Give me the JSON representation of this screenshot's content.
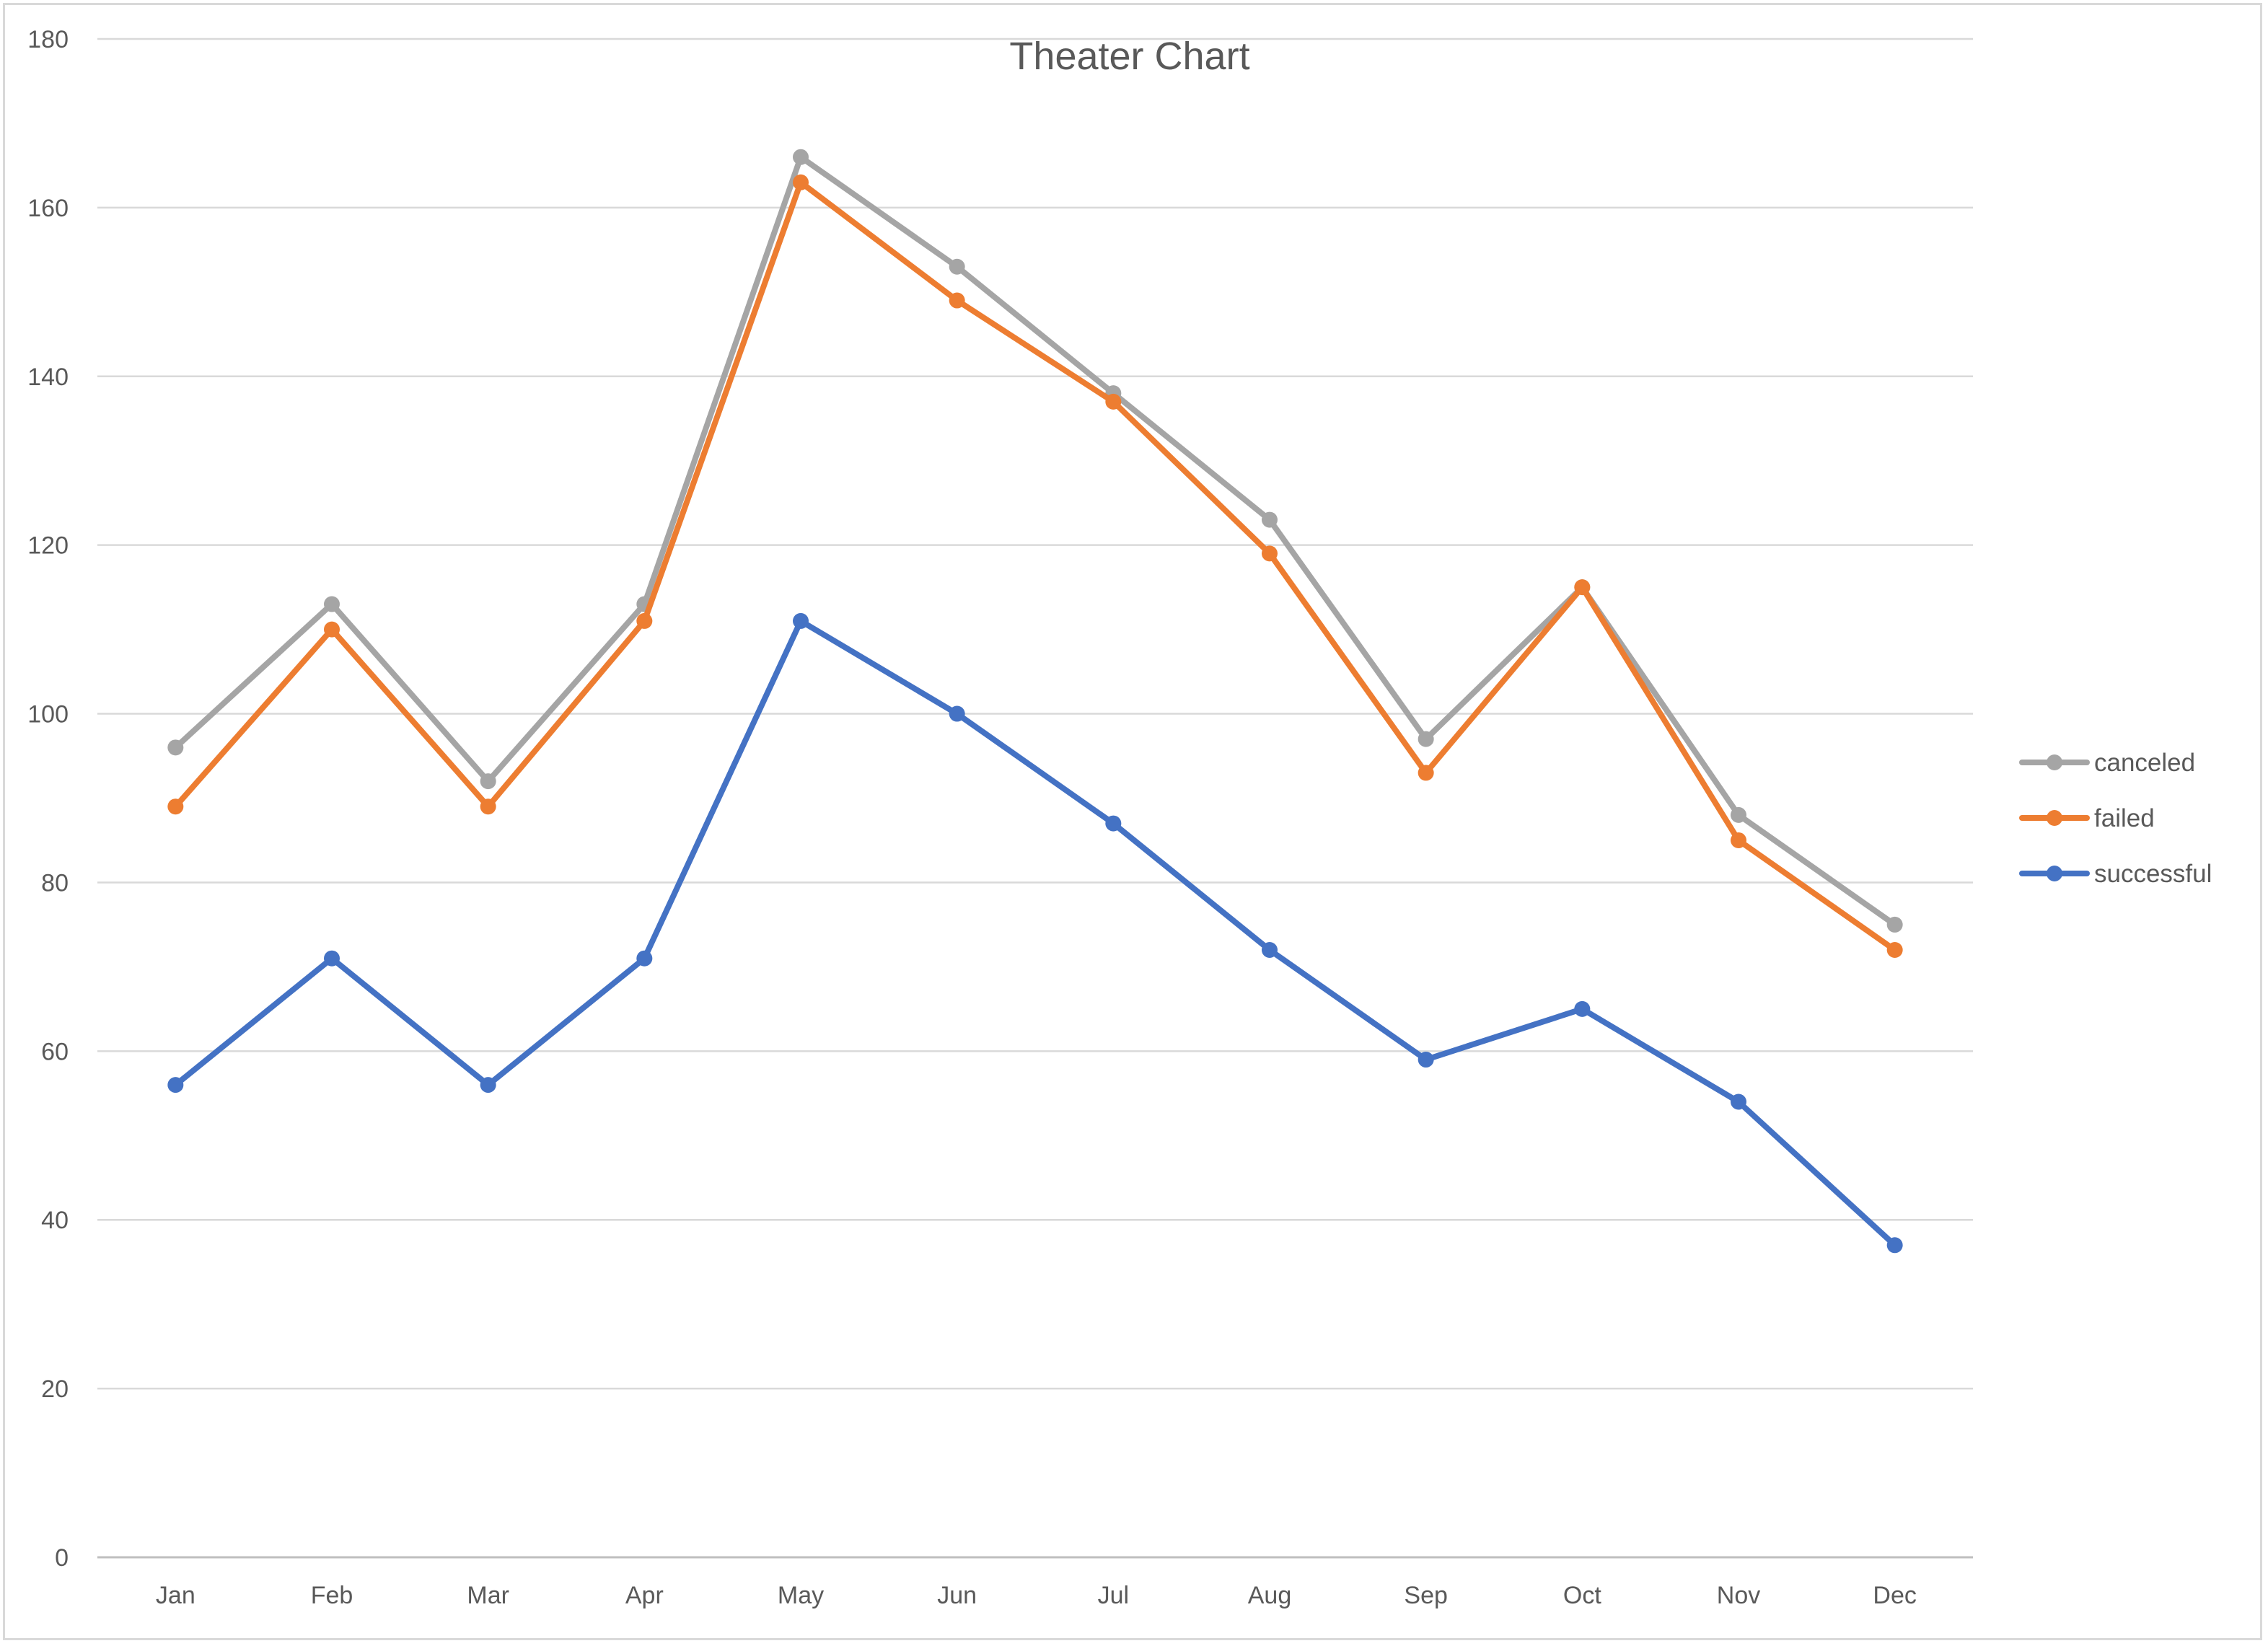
{
  "chart_data": {
    "type": "line",
    "title": "Theater Chart",
    "xlabel": "",
    "ylabel": "",
    "categories": [
      "Jan",
      "Feb",
      "Mar",
      "Apr",
      "May",
      "Jun",
      "Jul",
      "Aug",
      "Sep",
      "Oct",
      "Nov",
      "Dec"
    ],
    "ylim": [
      0,
      180
    ],
    "yticks": [
      0,
      20,
      40,
      60,
      80,
      100,
      120,
      140,
      160,
      180
    ],
    "grid": true,
    "legend_position": "right",
    "series": [
      {
        "name": "successful",
        "color": "#4472c4",
        "values": [
          56,
          71,
          56,
          71,
          111,
          100,
          87,
          72,
          59,
          65,
          54,
          37
        ]
      },
      {
        "name": "failed",
        "color": "#ed7d31",
        "values": [
          89,
          110,
          89,
          111,
          163,
          149,
          137,
          119,
          93,
          115,
          85,
          72
        ]
      },
      {
        "name": "canceled",
        "color": "#a5a5a5",
        "values": [
          96,
          113,
          92,
          113,
          166,
          153,
          138,
          123,
          97,
          115,
          88,
          75
        ]
      }
    ],
    "legend_order": [
      "canceled",
      "failed",
      "successful"
    ]
  }
}
